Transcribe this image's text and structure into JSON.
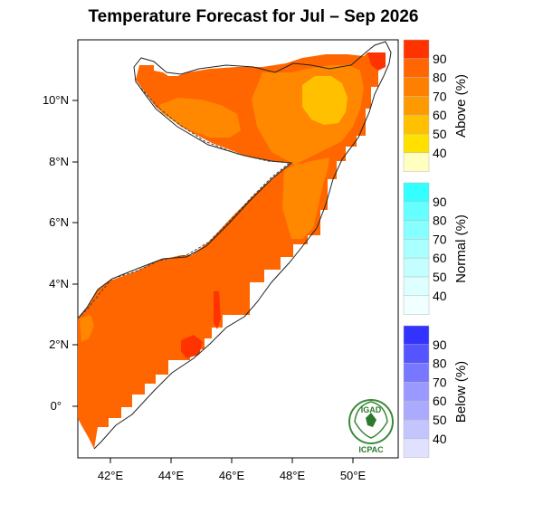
{
  "title": "Temperature Forecast for Jul – Sep 2026",
  "map": {
    "lat_ticks": [
      "10°N",
      "8°N",
      "6°N",
      "4°N",
      "2°N",
      "0°"
    ],
    "lon_ticks": [
      "42°E",
      "44°E",
      "46°E",
      "48°E",
      "50°E"
    ]
  },
  "colorbars": [
    {
      "title": "Above (%)",
      "labels": [
        "90",
        "80",
        "70",
        "60",
        "50",
        "40"
      ],
      "colors": [
        "#FF3300",
        "#FF6600",
        "#FF8000",
        "#FF9900",
        "#FFC000",
        "#FFE000",
        "#FFFFC0"
      ]
    },
    {
      "title": "Normal (%)",
      "labels": [
        "90",
        "80",
        "70",
        "60",
        "50",
        "40"
      ],
      "colors": [
        "#33FFFF",
        "#66FFFF",
        "#88FFFF",
        "#AAFFFF",
        "#C4FFFF",
        "#DDFFFF",
        "#F0FFFF"
      ]
    },
    {
      "title": "Below (%)",
      "labels": [
        "90",
        "80",
        "70",
        "60",
        "50",
        "40"
      ],
      "colors": [
        "#3333FF",
        "#5555FF",
        "#7777FF",
        "#9999FF",
        "#AAAAFF",
        "#C4C4FF",
        "#E0E0FF"
      ]
    }
  ],
  "logo": {
    "top": "IGAD",
    "bottom": "ICPAC"
  },
  "colors": {
    "main": "#FF6600",
    "orange": "#FF8C00",
    "yellow": "#FFC000",
    "red": "#FF3300"
  }
}
